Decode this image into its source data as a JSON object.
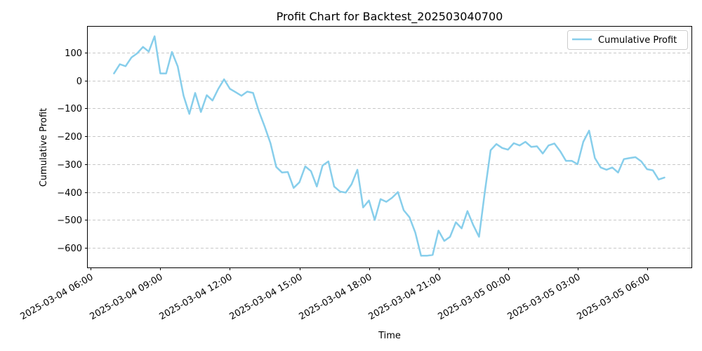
{
  "chart_data": {
    "type": "line",
    "title": "Profit Chart for Backtest_202503040700",
    "xlabel": "Time",
    "ylabel": "Cumulative Profit",
    "x_start": "2025-03-04 07:00",
    "x_step_minutes": 15,
    "xlim": [
      "2025-03-04 05:52",
      "2025-03-05 07:55"
    ],
    "ylim": [
      -670,
      195
    ],
    "yticks": [
      100,
      0,
      -100,
      -200,
      -300,
      -400,
      -500,
      -600
    ],
    "xticks": [
      "2025-03-04 06:00",
      "2025-03-04 09:00",
      "2025-03-04 12:00",
      "2025-03-04 15:00",
      "2025-03-04 18:00",
      "2025-03-04 21:00",
      "2025-03-05 00:00",
      "2025-03-05 03:00",
      "2025-03-05 06:00"
    ],
    "grid": "y-dashed",
    "legend": "top-right",
    "color": "#87ceeb",
    "series": [
      {
        "name": "Cumulative Profit",
        "values": [
          25,
          58,
          51,
          82,
          97,
          120,
          103,
          158,
          25,
          25,
          102,
          50,
          -55,
          -120,
          -45,
          -113,
          -53,
          -72,
          -30,
          4,
          -30,
          -42,
          -55,
          -40,
          -45,
          -110,
          -165,
          -225,
          -310,
          -330,
          -328,
          -385,
          -365,
          -308,
          -325,
          -380,
          -305,
          -290,
          -380,
          -398,
          -402,
          -372,
          -320,
          -455,
          -430,
          -500,
          -425,
          -435,
          -420,
          -400,
          -465,
          -490,
          -545,
          -628,
          -628,
          -625,
          -538,
          -575,
          -560,
          -508,
          -530,
          -468,
          -518,
          -560,
          -400,
          -250,
          -228,
          -242,
          -248,
          -225,
          -233,
          -220,
          -238,
          -236,
          -262,
          -233,
          -226,
          -253,
          -288,
          -288,
          -300,
          -220,
          -180,
          -278,
          -312,
          -320,
          -312,
          -330,
          -282,
          -278,
          -275,
          -290,
          -318,
          -322,
          -355,
          -348
        ]
      }
    ]
  }
}
